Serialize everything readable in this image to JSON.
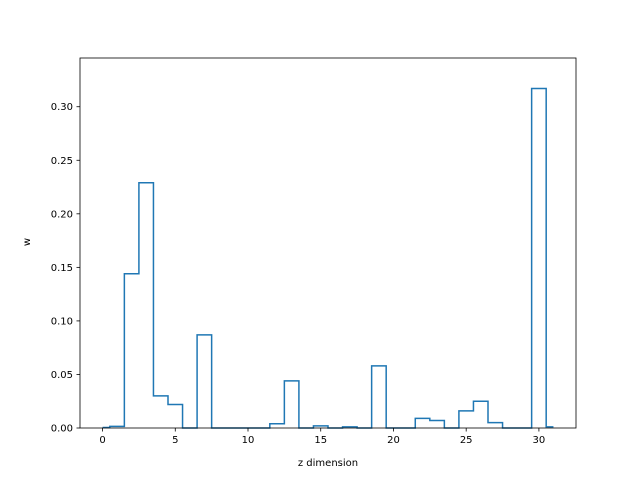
{
  "chart_data": {
    "type": "step",
    "title": "",
    "xlabel": "z dimension",
    "ylabel": "w",
    "xlim": [
      -1.55,
      32.55
    ],
    "ylim": [
      0,
      0.3455
    ],
    "xticks": [
      0,
      5,
      10,
      15,
      20,
      25,
      30
    ],
    "xtick_labels": [
      "0",
      "5",
      "10",
      "15",
      "20",
      "25",
      "30"
    ],
    "yticks": [
      0.0,
      0.05,
      0.1,
      0.15,
      0.2,
      0.25,
      0.3
    ],
    "ytick_labels": [
      "0.00",
      "0.05",
      "0.10",
      "0.15",
      "0.20",
      "0.25",
      "0.30"
    ],
    "grid": false,
    "step_where": "mid",
    "series": [
      {
        "color": "#1f77b4",
        "x": [
          0,
          1,
          2,
          3,
          4,
          5,
          6,
          7,
          8,
          9,
          10,
          11,
          12,
          13,
          14,
          15,
          16,
          17,
          18,
          19,
          20,
          21,
          22,
          23,
          24,
          25,
          26,
          27,
          28,
          29,
          30,
          31
        ],
        "values": [
          0.0005,
          0.0015,
          0.144,
          0.229,
          0.03,
          0.022,
          0.0,
          0.087,
          0.0,
          0.0,
          0.0,
          0.0,
          0.004,
          0.044,
          0.0,
          0.002,
          0.0,
          0.001,
          0.0,
          0.058,
          0.0,
          0.0,
          0.009,
          0.007,
          0.0,
          0.016,
          0.025,
          0.005,
          0.0,
          0.0,
          0.317,
          0.001
        ]
      }
    ]
  }
}
